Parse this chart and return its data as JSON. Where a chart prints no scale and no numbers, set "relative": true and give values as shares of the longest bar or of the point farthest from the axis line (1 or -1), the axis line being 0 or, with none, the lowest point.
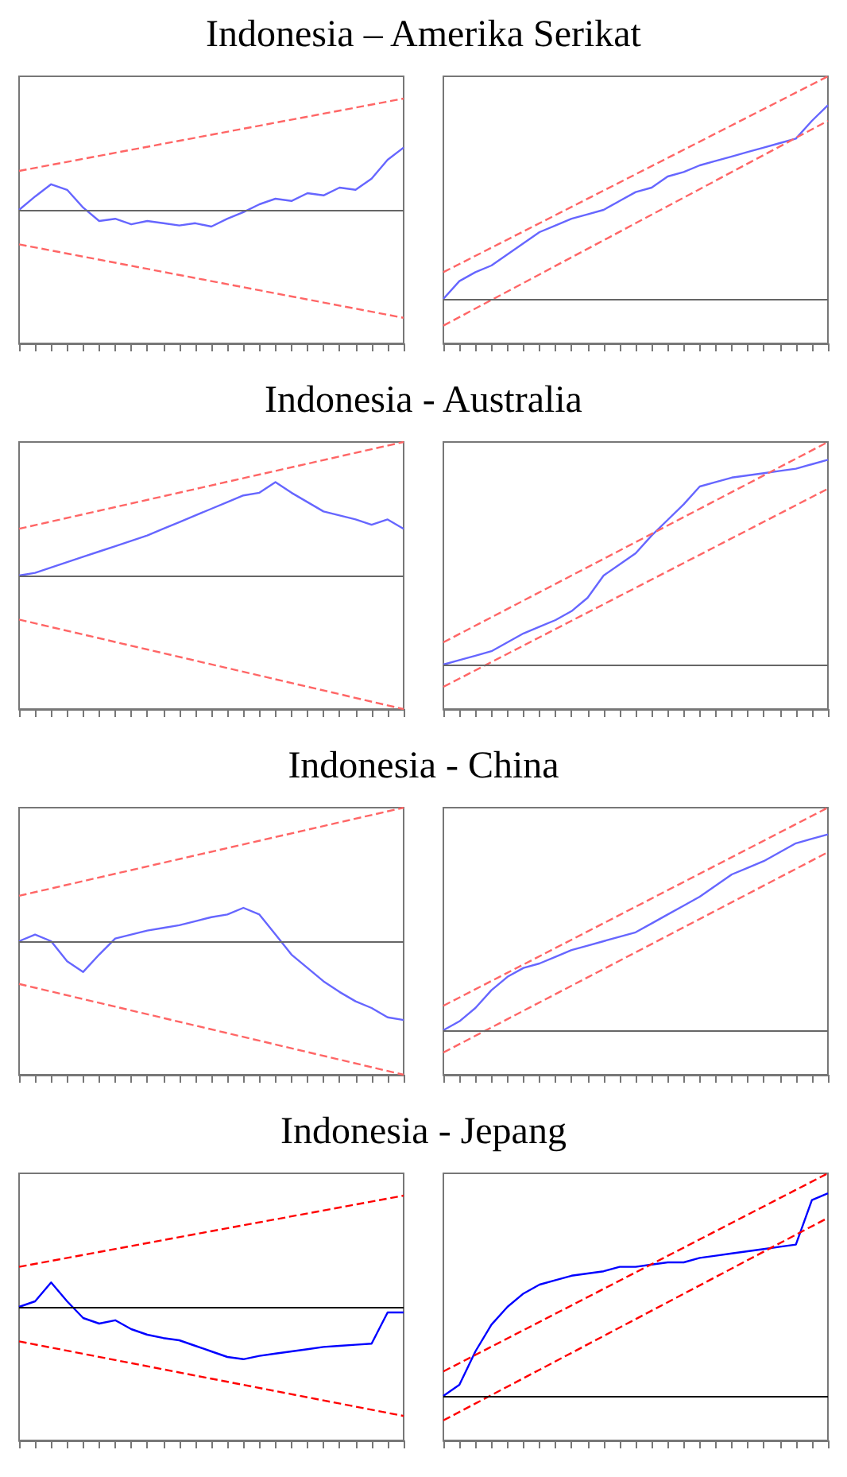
{
  "chart_data": [
    {
      "type": "line",
      "title": "Indonesia – Amerika Serikat",
      "relative": true,
      "marker": "none",
      "categories": [
        null,
        null,
        null,
        null,
        null,
        null,
        null,
        null,
        null,
        null,
        null,
        null,
        null,
        null,
        null,
        null,
        null,
        null,
        null,
        null,
        null,
        null,
        null,
        null,
        null
      ],
      "series": [
        {
          "color": "#6666ff",
          "line_style": "solid",
          "values": [
            0,
            0.12,
            0.23,
            0.18,
            0.02,
            -0.1,
            -0.08,
            -0.13,
            -0.1,
            -0.12,
            -0.14,
            -0.12,
            -0.15,
            -0.08,
            -0.02,
            0.05,
            0.1,
            0.08,
            0.15,
            0.13,
            0.2,
            0.18,
            0.28,
            0.45,
            0.56
          ]
        },
        {
          "color": "#ff6666",
          "line_style": "dashed",
          "values": [
            0.35,
            null,
            null,
            null,
            null,
            null,
            null,
            null,
            null,
            null,
            null,
            null,
            null,
            null,
            null,
            null,
            null,
            null,
            null,
            null,
            null,
            null,
            null,
            null,
            1
          ]
        },
        {
          "color": "#ff6666",
          "line_style": "dashed",
          "values": [
            -0.31,
            null,
            null,
            null,
            null,
            null,
            null,
            null,
            null,
            null,
            null,
            null,
            null,
            null,
            null,
            null,
            null,
            null,
            null,
            null,
            null,
            null,
            null,
            null,
            -0.97
          ]
        }
      ],
      "ref_lines": [
        {
          "axis": "y",
          "value": 0,
          "color": "#666666"
        }
      ]
    },
    {
      "type": "line",
      "relative": true,
      "marker": "none",
      "categories": [
        null,
        null,
        null,
        null,
        null,
        null,
        null,
        null,
        null,
        null,
        null,
        null,
        null,
        null,
        null,
        null,
        null,
        null,
        null,
        null,
        null,
        null,
        null,
        null,
        null
      ],
      "series": [
        {
          "color": "#6666ff",
          "line_style": "solid",
          "values": [
            0,
            0.08,
            0.12,
            0.15,
            0.2,
            0.25,
            0.3,
            0.33,
            0.36,
            0.38,
            0.4,
            0.44,
            0.48,
            0.5,
            0.55,
            0.57,
            0.6,
            0.62,
            0.64,
            0.66,
            0.68,
            0.7,
            0.72,
            0.8,
            0.87
          ]
        },
        {
          "color": "#ff6666",
          "line_style": "dashed",
          "values": [
            0.12,
            null,
            null,
            null,
            null,
            null,
            null,
            null,
            null,
            null,
            null,
            null,
            null,
            null,
            null,
            null,
            null,
            null,
            null,
            null,
            null,
            null,
            null,
            null,
            1
          ]
        },
        {
          "color": "#ff6666",
          "line_style": "dashed",
          "values": [
            -0.12,
            null,
            null,
            null,
            null,
            null,
            null,
            null,
            null,
            null,
            null,
            null,
            null,
            null,
            null,
            null,
            null,
            null,
            null,
            null,
            null,
            null,
            null,
            null,
            0.8
          ]
        }
      ],
      "ref_lines": [
        {
          "axis": "y",
          "value": 0,
          "color": "#666666"
        }
      ]
    },
    {
      "type": "line",
      "title": "Indonesia - Australia",
      "relative": true,
      "marker": "none",
      "categories": [
        null,
        null,
        null,
        null,
        null,
        null,
        null,
        null,
        null,
        null,
        null,
        null,
        null,
        null,
        null,
        null,
        null,
        null,
        null,
        null,
        null,
        null,
        null,
        null,
        null
      ],
      "series": [
        {
          "color": "#6666ff",
          "line_style": "solid",
          "values": [
            0,
            0.02,
            0.06,
            0.1,
            0.14,
            0.18,
            0.22,
            0.26,
            0.3,
            0.35,
            0.4,
            0.45,
            0.5,
            0.55,
            0.6,
            0.62,
            0.7,
            0.62,
            0.55,
            0.48,
            0.45,
            0.42,
            0.38,
            0.42,
            0.35
          ]
        },
        {
          "color": "#ff6666",
          "line_style": "dashed",
          "values": [
            0.35,
            null,
            null,
            null,
            null,
            null,
            null,
            null,
            null,
            null,
            null,
            null,
            null,
            null,
            null,
            null,
            null,
            null,
            null,
            null,
            null,
            null,
            null,
            null,
            1
          ]
        },
        {
          "color": "#ff6666",
          "line_style": "dashed",
          "values": [
            -0.33,
            null,
            null,
            null,
            null,
            null,
            null,
            null,
            null,
            null,
            null,
            null,
            null,
            null,
            null,
            null,
            null,
            null,
            null,
            null,
            null,
            null,
            null,
            null,
            -1
          ]
        }
      ],
      "ref_lines": [
        {
          "axis": "y",
          "value": 0,
          "color": "#666666"
        }
      ]
    },
    {
      "type": "line",
      "relative": true,
      "marker": "none",
      "categories": [
        null,
        null,
        null,
        null,
        null,
        null,
        null,
        null,
        null,
        null,
        null,
        null,
        null,
        null,
        null,
        null,
        null,
        null,
        null,
        null,
        null,
        null,
        null,
        null,
        null
      ],
      "series": [
        {
          "color": "#6666ff",
          "line_style": "solid",
          "values": [
            0,
            0.02,
            0.04,
            0.06,
            0.1,
            0.14,
            0.17,
            0.2,
            0.24,
            0.3,
            0.4,
            0.45,
            0.5,
            0.58,
            0.65,
            0.72,
            0.8,
            0.82,
            0.84,
            0.85,
            0.86,
            0.87,
            0.88,
            0.9,
            0.92
          ]
        },
        {
          "color": "#ff6666",
          "line_style": "dashed",
          "values": [
            0.1,
            null,
            null,
            null,
            null,
            null,
            null,
            null,
            null,
            null,
            null,
            null,
            null,
            null,
            null,
            null,
            null,
            null,
            null,
            null,
            null,
            null,
            null,
            null,
            1
          ]
        },
        {
          "color": "#ff6666",
          "line_style": "dashed",
          "values": [
            -0.1,
            null,
            null,
            null,
            null,
            null,
            null,
            null,
            null,
            null,
            null,
            null,
            null,
            null,
            null,
            null,
            null,
            null,
            null,
            null,
            null,
            null,
            null,
            null,
            0.79
          ]
        }
      ],
      "ref_lines": [
        {
          "axis": "y",
          "value": 0,
          "color": "#666666"
        }
      ]
    },
    {
      "type": "line",
      "title": "Indonesia - China",
      "relative": true,
      "marker": "none",
      "categories": [
        null,
        null,
        null,
        null,
        null,
        null,
        null,
        null,
        null,
        null,
        null,
        null,
        null,
        null,
        null,
        null,
        null,
        null,
        null,
        null,
        null,
        null,
        null,
        null,
        null
      ],
      "series": [
        {
          "color": "#6666ff",
          "line_style": "solid",
          "values": [
            0,
            0.05,
            0,
            -0.15,
            -0.23,
            -0.1,
            0.02,
            0.05,
            0.08,
            0.1,
            0.12,
            0.15,
            0.18,
            0.2,
            0.25,
            0.2,
            0.05,
            -0.1,
            -0.2,
            -0.3,
            -0.38,
            -0.45,
            -0.5,
            -0.57,
            -0.59
          ]
        },
        {
          "color": "#ff6666",
          "line_style": "dashed",
          "values": [
            0.34,
            null,
            null,
            null,
            null,
            null,
            null,
            null,
            null,
            null,
            null,
            null,
            null,
            null,
            null,
            null,
            null,
            null,
            null,
            null,
            null,
            null,
            null,
            null,
            1
          ]
        },
        {
          "color": "#ff6666",
          "line_style": "dashed",
          "values": [
            -0.32,
            null,
            null,
            null,
            null,
            null,
            null,
            null,
            null,
            null,
            null,
            null,
            null,
            null,
            null,
            null,
            null,
            null,
            null,
            null,
            null,
            null,
            null,
            null,
            -1
          ]
        }
      ],
      "ref_lines": [
        {
          "axis": "y",
          "value": 0,
          "color": "#666666"
        }
      ]
    },
    {
      "type": "line",
      "relative": true,
      "marker": "none",
      "categories": [
        null,
        null,
        null,
        null,
        null,
        null,
        null,
        null,
        null,
        null,
        null,
        null,
        null,
        null,
        null,
        null,
        null,
        null,
        null,
        null,
        null,
        null,
        null,
        null,
        null
      ],
      "series": [
        {
          "color": "#6666ff",
          "line_style": "solid",
          "values": [
            0,
            0.04,
            0.1,
            0.18,
            0.24,
            0.28,
            0.3,
            0.33,
            0.36,
            0.38,
            0.4,
            0.42,
            0.44,
            0.48,
            0.52,
            0.56,
            0.6,
            0.65,
            0.7,
            0.73,
            0.76,
            0.8,
            0.84,
            0.86,
            0.88
          ]
        },
        {
          "color": "#ff6666",
          "line_style": "dashed",
          "values": [
            0.11,
            null,
            null,
            null,
            null,
            null,
            null,
            null,
            null,
            null,
            null,
            null,
            null,
            null,
            null,
            null,
            null,
            null,
            null,
            null,
            null,
            null,
            null,
            null,
            1
          ]
        },
        {
          "color": "#ff6666",
          "line_style": "dashed",
          "values": [
            -0.1,
            null,
            null,
            null,
            null,
            null,
            null,
            null,
            null,
            null,
            null,
            null,
            null,
            null,
            null,
            null,
            null,
            null,
            null,
            null,
            null,
            null,
            null,
            null,
            0.8
          ]
        }
      ],
      "ref_lines": [
        {
          "axis": "y",
          "value": 0,
          "color": "#666666"
        }
      ]
    },
    {
      "type": "line",
      "title": "Indonesia - Jepang",
      "relative": true,
      "marker": "none",
      "categories": [
        null,
        null,
        null,
        null,
        null,
        null,
        null,
        null,
        null,
        null,
        null,
        null,
        null,
        null,
        null,
        null,
        null,
        null,
        null,
        null,
        null,
        null,
        null,
        null,
        null
      ],
      "series": [
        {
          "color": "#0000ff",
          "line_style": "solid",
          "values": [
            0,
            0.05,
            0.22,
            0.05,
            -0.1,
            -0.15,
            -0.12,
            -0.2,
            -0.25,
            -0.28,
            -0.3,
            -0.35,
            -0.4,
            -0.45,
            -0.47,
            -0.44,
            -0.42,
            -0.4,
            -0.38,
            -0.36,
            -0.35,
            -0.34,
            -0.33,
            -0.05,
            -0.05
          ]
        },
        {
          "color": "#ff0000",
          "line_style": "dashed",
          "values": [
            0.36,
            null,
            null,
            null,
            null,
            null,
            null,
            null,
            null,
            null,
            null,
            null,
            null,
            null,
            null,
            null,
            null,
            null,
            null,
            null,
            null,
            null,
            null,
            null,
            1
          ]
        },
        {
          "color": "#ff0000",
          "line_style": "dashed",
          "values": [
            -0.31,
            null,
            null,
            null,
            null,
            null,
            null,
            null,
            null,
            null,
            null,
            null,
            null,
            null,
            null,
            null,
            null,
            null,
            null,
            null,
            null,
            null,
            null,
            null,
            -0.98
          ]
        }
      ],
      "ref_lines": [
        {
          "axis": "y",
          "value": 0,
          "color": "#000000"
        }
      ]
    },
    {
      "type": "line",
      "relative": true,
      "marker": "none",
      "categories": [
        null,
        null,
        null,
        null,
        null,
        null,
        null,
        null,
        null,
        null,
        null,
        null,
        null,
        null,
        null,
        null,
        null,
        null,
        null,
        null,
        null,
        null,
        null,
        null,
        null
      ],
      "series": [
        {
          "color": "#0000ff",
          "line_style": "solid",
          "values": [
            0,
            0.05,
            0.2,
            0.32,
            0.4,
            0.46,
            0.5,
            0.52,
            0.54,
            0.55,
            0.56,
            0.58,
            0.58,
            0.59,
            0.6,
            0.6,
            0.62,
            0.63,
            0.64,
            0.65,
            0.66,
            0.67,
            0.68,
            0.88,
            0.91
          ]
        },
        {
          "color": "#ff0000",
          "line_style": "dashed",
          "values": [
            0.11,
            null,
            null,
            null,
            null,
            null,
            null,
            null,
            null,
            null,
            null,
            null,
            null,
            null,
            null,
            null,
            null,
            null,
            null,
            null,
            null,
            null,
            null,
            null,
            1
          ]
        },
        {
          "color": "#ff0000",
          "line_style": "dashed",
          "values": [
            -0.11,
            null,
            null,
            null,
            null,
            null,
            null,
            null,
            null,
            null,
            null,
            null,
            null,
            null,
            null,
            null,
            null,
            null,
            null,
            null,
            null,
            null,
            null,
            null,
            0.8
          ]
        }
      ],
      "ref_lines": [
        {
          "axis": "y",
          "value": 0,
          "color": "#000000"
        }
      ]
    }
  ]
}
